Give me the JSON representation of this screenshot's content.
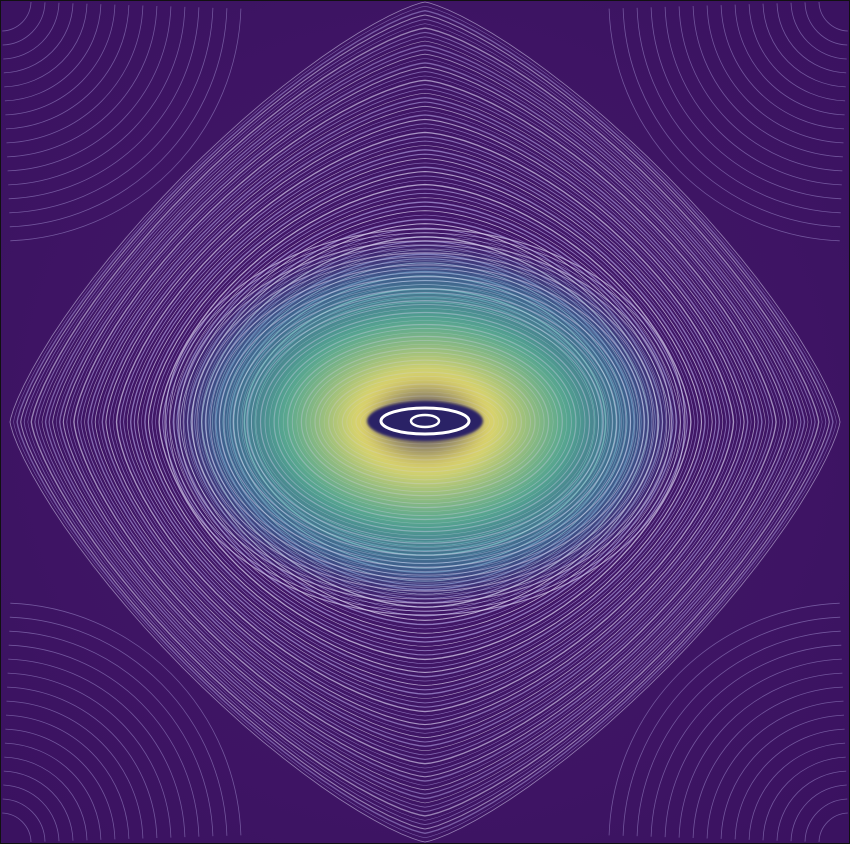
{
  "image": {
    "description_tag": "flow-field-visualization",
    "colors": {
      "background": "#45196b",
      "background_edge": "#3a1260",
      "streamline": "#d9d2f0",
      "streamline_dim": "#a898d8",
      "glow_yellow": "#f3ec6a",
      "glow_green": "#57c99a",
      "glow_teal": "#3c9fb0",
      "glow_blue": "#3a5b9c",
      "center_dark": "#2b2166",
      "center_ring": "#ffffff"
    }
  }
}
